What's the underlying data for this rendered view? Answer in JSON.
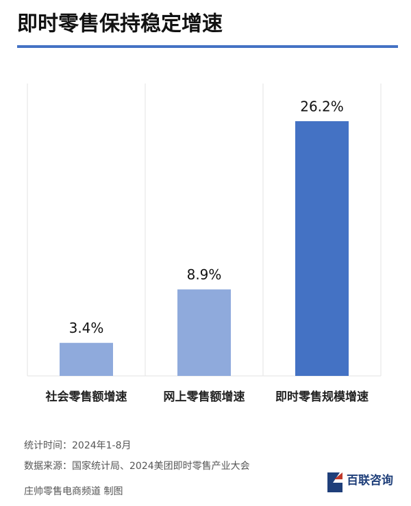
{
  "chart_data": {
    "type": "bar",
    "title": "即时零售保持稳定增速",
    "categories": [
      "社会零售额增速",
      "网上零售额增速",
      "即时零售规模增速"
    ],
    "values": [
      3.4,
      8.9,
      26.2
    ],
    "value_labels": [
      "3.4%",
      "8.9%",
      "26.2%"
    ],
    "colors": [
      "#8faadc",
      "#8faadc",
      "#4472c4"
    ]
  },
  "footer": {
    "period": "统计时间：2024年1-8月",
    "source": "数据来源：国家统计局、2024美团即时零售产业大会",
    "credit": "庄帅零售电商频道 制图",
    "logo": "百联咨询"
  }
}
